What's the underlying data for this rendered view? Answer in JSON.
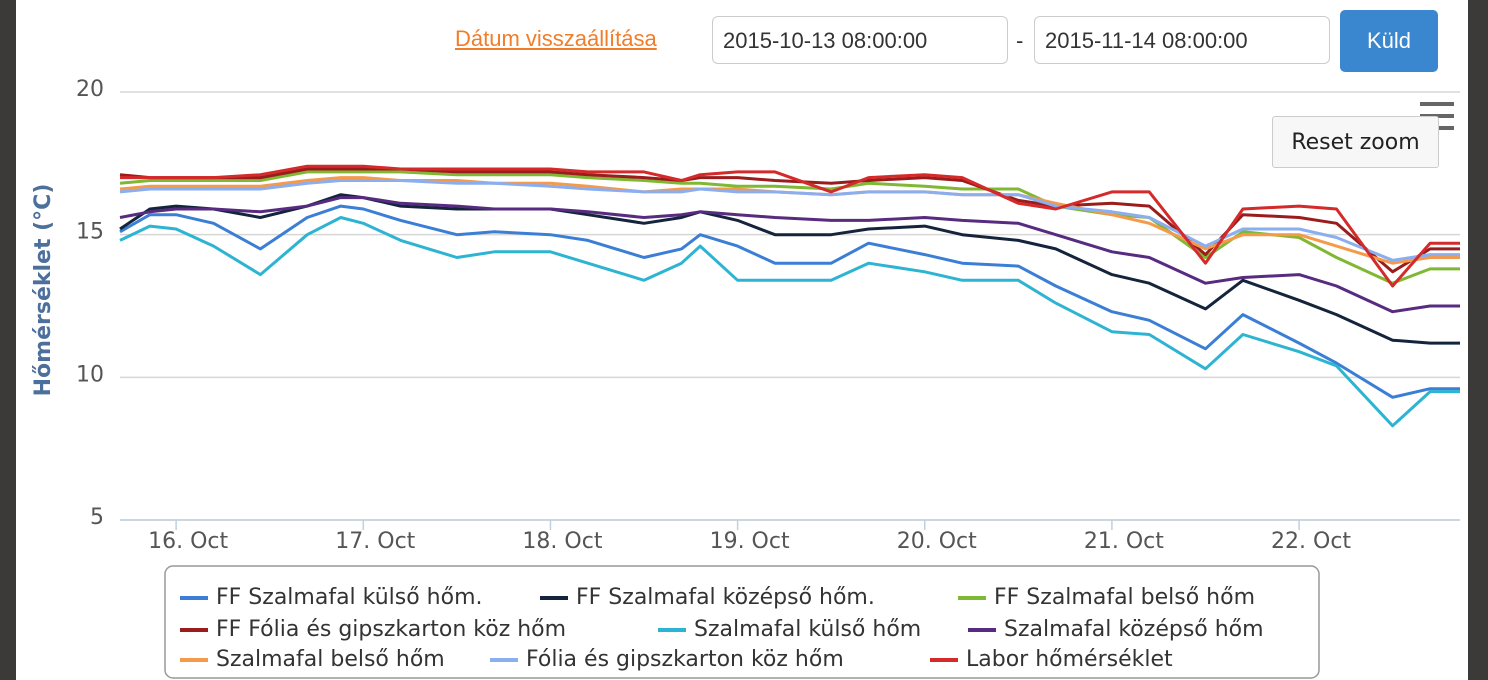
{
  "ui": {
    "reset_link": "Dátum visszaállítása",
    "date_from": "2015-10-13 08:00:00",
    "separator": "-",
    "date_to": "2015-11-14 08:00:00",
    "submit": "Küld",
    "reset_zoom": "Reset zoom"
  },
  "chart_data": {
    "type": "line",
    "y_label": "Hőmérséklet (°C)",
    "x": [
      15.7,
      15.86,
      16.0,
      16.2,
      16.45,
      16.7,
      16.88,
      17.0,
      17.2,
      17.5,
      17.7,
      18.0,
      18.2,
      18.5,
      18.7,
      18.8,
      19.0,
      19.2,
      19.5,
      19.7,
      20.0,
      20.2,
      20.5,
      20.7,
      21.0,
      21.2,
      21.5,
      21.7,
      22.0,
      22.2,
      22.5,
      22.7,
      22.86
    ],
    "xlim": [
      15.7,
      22.86
    ],
    "xticks": [
      {
        "value": 16,
        "label": "16. Oct"
      },
      {
        "value": 17,
        "label": "17. Oct"
      },
      {
        "value": 18,
        "label": "18. Oct"
      },
      {
        "value": 19,
        "label": "19. Oct"
      },
      {
        "value": 20,
        "label": "20. Oct"
      },
      {
        "value": 21,
        "label": "21. Oct"
      },
      {
        "value": 22,
        "label": "22. Oct"
      }
    ],
    "ylim": [
      5,
      20
    ],
    "yticks": [
      5,
      10,
      15,
      20
    ],
    "grid": true,
    "series": [
      {
        "name": "FF Szalmafal külső hőm.",
        "color": "#3a7fd5",
        "values": [
          15.1,
          15.7,
          15.7,
          15.4,
          14.5,
          15.6,
          16.0,
          15.9,
          15.5,
          15.0,
          15.1,
          15.0,
          14.8,
          14.2,
          14.5,
          15.0,
          14.6,
          14.0,
          14.0,
          14.7,
          14.3,
          14.0,
          13.9,
          13.2,
          12.3,
          12.0,
          11.0,
          12.2,
          11.2,
          10.5,
          9.3,
          9.6,
          9.6
        ]
      },
      {
        "name": "FF Szalmafal középső hőm.",
        "color": "#15243d",
        "values": [
          15.2,
          15.9,
          16.0,
          15.9,
          15.6,
          16.0,
          16.4,
          16.3,
          16.0,
          15.9,
          15.9,
          15.9,
          15.7,
          15.4,
          15.6,
          15.8,
          15.5,
          15.0,
          15.0,
          15.2,
          15.3,
          15.0,
          14.8,
          14.5,
          13.6,
          13.3,
          12.4,
          13.4,
          12.7,
          12.2,
          11.3,
          11.2,
          11.2
        ]
      },
      {
        "name": "FF Szalmafal belső hőm",
        "color": "#7fb833",
        "values": [
          16.8,
          16.9,
          16.9,
          16.9,
          16.9,
          17.2,
          17.2,
          17.2,
          17.2,
          17.1,
          17.1,
          17.1,
          17.0,
          16.9,
          16.8,
          16.8,
          16.7,
          16.7,
          16.6,
          16.8,
          16.7,
          16.6,
          16.6,
          16.0,
          15.7,
          15.6,
          14.2,
          15.1,
          14.9,
          14.2,
          13.3,
          13.8,
          13.8
        ]
      },
      {
        "name": "FF Fólia és gipszkarton köz hőm",
        "color": "#9b1c1c",
        "values": [
          17.1,
          17.0,
          17.0,
          17.0,
          17.0,
          17.3,
          17.3,
          17.3,
          17.3,
          17.2,
          17.2,
          17.2,
          17.1,
          17.0,
          16.9,
          17.0,
          17.0,
          16.9,
          16.8,
          16.9,
          17.0,
          16.9,
          16.2,
          16.0,
          16.1,
          16.0,
          14.3,
          15.7,
          15.6,
          15.4,
          13.7,
          14.5,
          14.5
        ]
      },
      {
        "name": "Szalmafal külső hőm",
        "color": "#2db4d2",
        "values": [
          14.8,
          15.3,
          15.2,
          14.6,
          13.6,
          15.0,
          15.6,
          15.4,
          14.8,
          14.2,
          14.4,
          14.4,
          14.0,
          13.4,
          14.0,
          14.6,
          13.4,
          13.4,
          13.4,
          14.0,
          13.7,
          13.4,
          13.4,
          12.6,
          11.6,
          11.5,
          10.3,
          11.5,
          10.9,
          10.4,
          8.3,
          9.5,
          9.5
        ]
      },
      {
        "name": "Szalmafal középső hőm",
        "color": "#572b80",
        "values": [
          15.6,
          15.8,
          15.9,
          15.9,
          15.8,
          16.0,
          16.3,
          16.3,
          16.1,
          16.0,
          15.9,
          15.9,
          15.8,
          15.6,
          15.7,
          15.8,
          15.7,
          15.6,
          15.5,
          15.5,
          15.6,
          15.5,
          15.4,
          15.0,
          14.4,
          14.2,
          13.3,
          13.5,
          13.6,
          13.2,
          12.3,
          12.5,
          12.5
        ]
      },
      {
        "name": "Szalmafal belső hőm",
        "color": "#f49a4a",
        "values": [
          16.6,
          16.7,
          16.7,
          16.7,
          16.7,
          16.9,
          17.0,
          17.0,
          16.9,
          16.9,
          16.8,
          16.8,
          16.7,
          16.5,
          16.6,
          16.6,
          16.6,
          16.5,
          16.4,
          16.5,
          16.5,
          16.4,
          16.4,
          16.1,
          15.7,
          15.4,
          14.5,
          15.0,
          15.0,
          14.6,
          14.0,
          14.2,
          14.2
        ]
      },
      {
        "name": "Fólia és gipszkarton köz hőm",
        "color": "#8aaef0",
        "values": [
          16.5,
          16.6,
          16.6,
          16.6,
          16.6,
          16.8,
          16.9,
          16.9,
          16.9,
          16.8,
          16.8,
          16.7,
          16.6,
          16.5,
          16.5,
          16.6,
          16.5,
          16.5,
          16.4,
          16.5,
          16.5,
          16.4,
          16.4,
          16.0,
          15.8,
          15.6,
          14.6,
          15.2,
          15.2,
          14.9,
          14.1,
          14.3,
          14.3
        ]
      },
      {
        "name": "Labor hőmérséklet",
        "color": "#d42a2a",
        "values": [
          17.0,
          17.0,
          17.0,
          17.0,
          17.1,
          17.4,
          17.4,
          17.4,
          17.3,
          17.3,
          17.3,
          17.3,
          17.2,
          17.2,
          16.9,
          17.1,
          17.2,
          17.2,
          16.5,
          17.0,
          17.1,
          17.0,
          16.1,
          15.9,
          16.5,
          16.5,
          14.0,
          15.9,
          16.0,
          15.9,
          13.2,
          14.7,
          14.7
        ]
      }
    ]
  }
}
